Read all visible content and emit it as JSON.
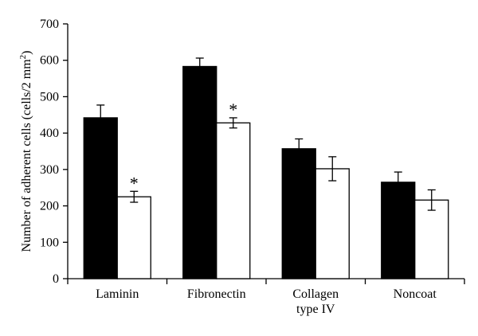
{
  "chart_data": {
    "type": "bar",
    "ylabel_main": "Number of adherent cells (cells/2 mm",
    "ylabel_sup": "2",
    "ylabel_end": ")",
    "ylim": [
      0,
      700
    ],
    "yticks": [
      "0",
      "100",
      "200",
      "300",
      "400",
      "500",
      "600",
      "700"
    ],
    "categories": [
      {
        "lines": [
          "Laminin"
        ]
      },
      {
        "lines": [
          "Fibronectin"
        ]
      },
      {
        "lines": [
          "Collagen",
          "type IV"
        ]
      },
      {
        "lines": [
          "Noncoat"
        ]
      }
    ],
    "series": [
      {
        "color": "#000000",
        "values": [
          442,
          583,
          357,
          265
        ],
        "errors": [
          35,
          23,
          27,
          28
        ]
      },
      {
        "color": "#ffffff",
        "values": [
          225,
          428,
          302,
          216
        ],
        "errors": [
          15,
          14,
          33,
          28
        ]
      }
    ],
    "significance": [
      {
        "category": 0,
        "series": 1,
        "label": "*"
      },
      {
        "category": 1,
        "series": 1,
        "label": "*"
      }
    ]
  }
}
